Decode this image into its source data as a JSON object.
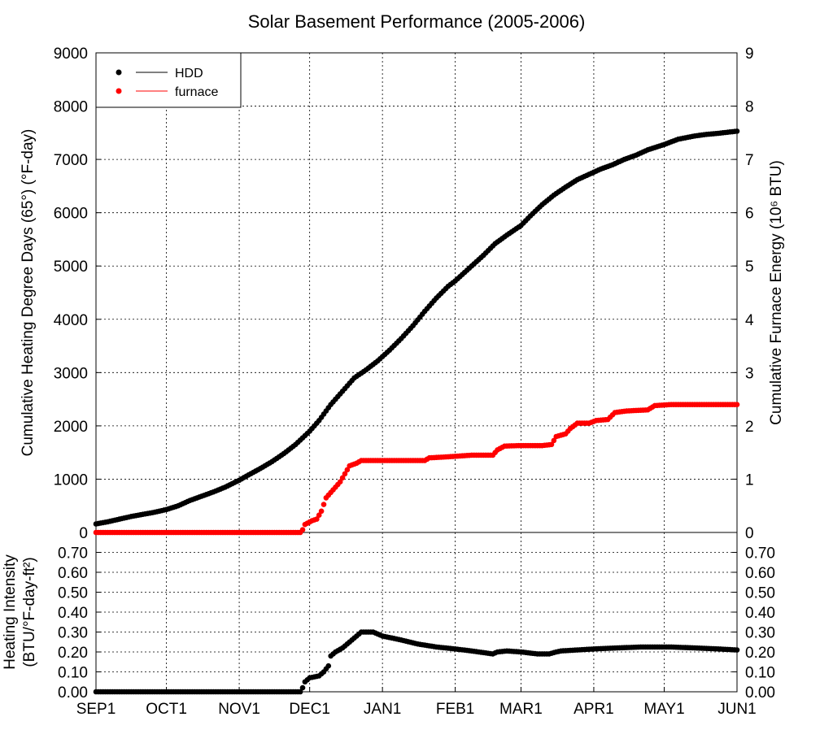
{
  "chart_data": [
    {
      "type": "scatter",
      "title": "Solar Basement Performance (2005-2006)",
      "xlabel": "",
      "ylabel_left": "Cumulative Heating Degree Days (65°) (°F-day)",
      "ylabel_right": "Cumulative Furnace Energy (10⁶ BTU)",
      "x_tick_labels": [
        "SEP1",
        "OCT1",
        "NOV1",
        "DEC1",
        "JAN1",
        "FEB1",
        "MAR1",
        "APR1",
        "MAY1",
        "JUN1"
      ],
      "x_tick_days": [
        0,
        30,
        61,
        91,
        122,
        153,
        181,
        212,
        242,
        273
      ],
      "xlim": [
        0,
        273
      ],
      "ylim_left": [
        0,
        9000
      ],
      "ylim_right": [
        0,
        9
      ],
      "y_ticks_left": [
        "0",
        "1000",
        "2000",
        "3000",
        "4000",
        "5000",
        "6000",
        "7000",
        "8000",
        "9000"
      ],
      "y_ticks_right": [
        "0",
        "1",
        "2",
        "3",
        "4",
        "5",
        "6",
        "7",
        "8",
        "9"
      ],
      "grid": true,
      "legend": {
        "position": "top-left",
        "entries": [
          "HDD",
          "furnace"
        ]
      },
      "series": [
        {
          "name": "HDD",
          "color": "#000000",
          "axis": "left",
          "points": [
            [
              0,
              160
            ],
            [
              5,
              200
            ],
            [
              10,
              250
            ],
            [
              15,
              300
            ],
            [
              20,
              340
            ],
            [
              25,
              380
            ],
            [
              30,
              430
            ],
            [
              35,
              500
            ],
            [
              40,
              600
            ],
            [
              45,
              680
            ],
            [
              50,
              760
            ],
            [
              55,
              850
            ],
            [
              61,
              980
            ],
            [
              65,
              1080
            ],
            [
              70,
              1200
            ],
            [
              75,
              1330
            ],
            [
              80,
              1480
            ],
            [
              85,
              1650
            ],
            [
              91,
              1900
            ],
            [
              95,
              2100
            ],
            [
              100,
              2400
            ],
            [
              105,
              2650
            ],
            [
              110,
              2900
            ],
            [
              115,
              3050
            ],
            [
              120,
              3220
            ],
            [
              122,
              3300
            ],
            [
              125,
              3420
            ],
            [
              130,
              3640
            ],
            [
              135,
              3880
            ],
            [
              140,
              4150
            ],
            [
              145,
              4400
            ],
            [
              150,
              4620
            ],
            [
              153,
              4720
            ],
            [
              160,
              5000
            ],
            [
              165,
              5200
            ],
            [
              170,
              5420
            ],
            [
              175,
              5580
            ],
            [
              181,
              5760
            ],
            [
              185,
              5940
            ],
            [
              190,
              6150
            ],
            [
              195,
              6330
            ],
            [
              200,
              6480
            ],
            [
              205,
              6620
            ],
            [
              212,
              6760
            ],
            [
              215,
              6820
            ],
            [
              220,
              6900
            ],
            [
              225,
              7000
            ],
            [
              230,
              7080
            ],
            [
              235,
              7180
            ],
            [
              242,
              7280
            ],
            [
              248,
              7380
            ],
            [
              255,
              7440
            ],
            [
              260,
              7470
            ],
            [
              265,
              7490
            ],
            [
              273,
              7530
            ]
          ]
        },
        {
          "name": "furnace",
          "color": "#ff0000",
          "axis": "right",
          "points": [
            [
              0,
              0
            ],
            [
              87,
              0
            ],
            [
              88,
              0.05
            ],
            [
              89,
              0.15
            ],
            [
              92,
              0.22
            ],
            [
              94,
              0.25
            ],
            [
              96,
              0.4
            ],
            [
              98,
              0.65
            ],
            [
              100,
              0.75
            ],
            [
              102,
              0.85
            ],
            [
              104,
              0.95
            ],
            [
              106,
              1.1
            ],
            [
              108,
              1.25
            ],
            [
              111,
              1.3
            ],
            [
              113,
              1.35
            ],
            [
              120,
              1.35
            ],
            [
              130,
              1.35
            ],
            [
              140,
              1.35
            ],
            [
              142,
              1.4
            ],
            [
              150,
              1.42
            ],
            [
              160,
              1.45
            ],
            [
              169,
              1.45
            ],
            [
              171,
              1.55
            ],
            [
              174,
              1.62
            ],
            [
              180,
              1.63
            ],
            [
              190,
              1.63
            ],
            [
              194,
              1.65
            ],
            [
              196,
              1.8
            ],
            [
              200,
              1.85
            ],
            [
              202,
              1.95
            ],
            [
              205,
              2.05
            ],
            [
              210,
              2.05
            ],
            [
              213,
              2.1
            ],
            [
              218,
              2.12
            ],
            [
              221,
              2.25
            ],
            [
              226,
              2.28
            ],
            [
              235,
              2.3
            ],
            [
              238,
              2.38
            ],
            [
              245,
              2.4
            ],
            [
              260,
              2.4
            ],
            [
              273,
              2.4
            ]
          ]
        }
      ]
    },
    {
      "type": "scatter",
      "title": "",
      "ylabel_line1": "Heating Intensity",
      "ylabel_line2": "(BTU/°F-day-ft²)",
      "x_tick_labels": [
        "SEP1",
        "OCT1",
        "NOV1",
        "DEC1",
        "JAN1",
        "FEB1",
        "MAR1",
        "APR1",
        "MAY1",
        "JUN1"
      ],
      "xlim": [
        0,
        273
      ],
      "ylim": [
        0,
        0.8
      ],
      "y_ticks": [
        "0.00",
        "0.10",
        "0.20",
        "0.30",
        "0.40",
        "0.50",
        "0.60",
        "0.70"
      ],
      "grid": true,
      "series": [
        {
          "name": "Heating Intensity",
          "color": "#000000",
          "points": [
            [
              0,
              0
            ],
            [
              87,
              0
            ],
            [
              88,
              0.02
            ],
            [
              89,
              0.05
            ],
            [
              91,
              0.07
            ],
            [
              95,
              0.08
            ],
            [
              97,
              0.1
            ],
            [
              99,
              0.13
            ],
            [
              100,
              0.18
            ],
            [
              102,
              0.2
            ],
            [
              105,
              0.22
            ],
            [
              108,
              0.25
            ],
            [
              111,
              0.28
            ],
            [
              113,
              0.3
            ],
            [
              118,
              0.3
            ],
            [
              122,
              0.28
            ],
            [
              130,
              0.26
            ],
            [
              137,
              0.24
            ],
            [
              145,
              0.225
            ],
            [
              153,
              0.215
            ],
            [
              160,
              0.205
            ],
            [
              166,
              0.195
            ],
            [
              169,
              0.19
            ],
            [
              171,
              0.2
            ],
            [
              175,
              0.205
            ],
            [
              181,
              0.2
            ],
            [
              188,
              0.19
            ],
            [
              193,
              0.19
            ],
            [
              196,
              0.2
            ],
            [
              198,
              0.205
            ],
            [
              205,
              0.21
            ],
            [
              212,
              0.215
            ],
            [
              222,
              0.22
            ],
            [
              232,
              0.225
            ],
            [
              245,
              0.225
            ],
            [
              255,
              0.22
            ],
            [
              265,
              0.215
            ],
            [
              273,
              0.21
            ]
          ]
        }
      ]
    }
  ]
}
